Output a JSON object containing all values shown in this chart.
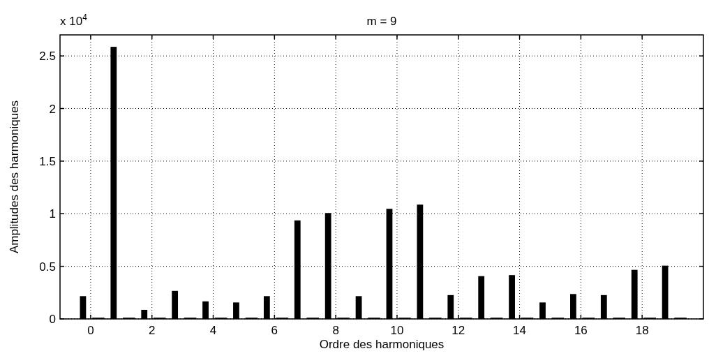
{
  "chart_data": {
    "type": "bar",
    "title": "m = 9",
    "xlabel": "Ordre des harmoniques",
    "ylabel": "Amplitudes des harmoniques",
    "annotations": [
      "x 10$^{4}$"
    ],
    "x": [
      0,
      1,
      2,
      3,
      4,
      5,
      6,
      7,
      8,
      9,
      10,
      11,
      12,
      13,
      14,
      15,
      16,
      17,
      18,
      19
    ],
    "series": [
      {
        "color": "#000000",
        "values": [
          0.21,
          2.58,
          0.08,
          0.26,
          0.16,
          0.15,
          0.21,
          0.93,
          1.0,
          0.21,
          1.04,
          1.08,
          0.22,
          0.4,
          0.41,
          0.15,
          0.23,
          0.22,
          0.46,
          0.5
        ]
      },
      {
        "color": "#000000",
        "values": [
          0.005,
          0.005,
          0.005,
          0.005,
          0.005,
          0.005,
          0.005,
          0.005,
          0.005,
          0.005,
          0.005,
          0.005,
          0.005,
          0.005,
          0.005,
          0.005,
          0.005,
          0.005,
          0.005,
          0.005
        ]
      }
    ],
    "xlim": [
      -1,
      20
    ],
    "ylim": [
      0,
      2.7
    ],
    "xticks": [
      0,
      2,
      4,
      6,
      8,
      10,
      12,
      14,
      16,
      18
    ],
    "yticks": [
      0,
      0.5,
      1,
      1.5,
      2,
      2.5
    ],
    "grid": true
  }
}
